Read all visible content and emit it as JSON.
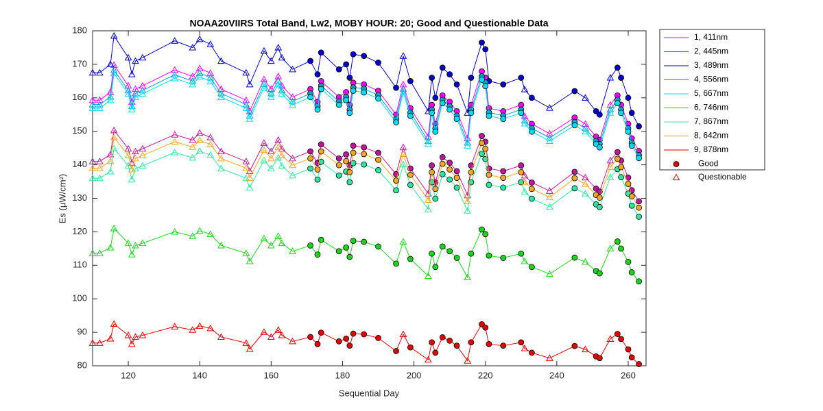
{
  "chart_data": {
    "type": "line",
    "title": "NOAA20VIIRS Total Band,  Lw2, MOBY HOUR: 20;  Good and Questionable Data",
    "x_label": "Sequential Day",
    "y_label": "Es (μW/cm²)",
    "xlim": [
      110,
      265
    ],
    "ylim": [
      80,
      180
    ],
    "xticks": [
      120,
      140,
      160,
      180,
      200,
      220,
      240,
      260
    ],
    "yticks": [
      80,
      90,
      100,
      110,
      120,
      130,
      140,
      150,
      160,
      170,
      180
    ],
    "legend_position": "outside-right",
    "quality_legend": [
      "Good",
      "Questionable"
    ],
    "quality_legend_color": "#e00000",
    "x": [
      110,
      112,
      115,
      116,
      120,
      121,
      122,
      124,
      133,
      138,
      140,
      143,
      146,
      153,
      154,
      158,
      160,
      162,
      163,
      166,
      171,
      173,
      174,
      179,
      181,
      182,
      183,
      186,
      190,
      195,
      197,
      199,
      204,
      205,
      206,
      208,
      210,
      212,
      215,
      216,
      219,
      220,
      221,
      225,
      230,
      231,
      233,
      238,
      245,
      248,
      251,
      252,
      255,
      257,
      258,
      260,
      261,
      263
    ],
    "good": [
      false,
      false,
      false,
      false,
      false,
      false,
      false,
      false,
      false,
      false,
      false,
      false,
      false,
      false,
      false,
      false,
      false,
      false,
      false,
      false,
      true,
      true,
      true,
      true,
      true,
      true,
      true,
      true,
      true,
      true,
      false,
      true,
      false,
      true,
      true,
      true,
      true,
      true,
      false,
      true,
      true,
      true,
      true,
      true,
      true,
      false,
      true,
      false,
      true,
      false,
      true,
      true,
      false,
      true,
      true,
      true,
      true,
      true
    ],
    "series": [
      {
        "name": "1, 411nm",
        "color": "#ff00ff",
        "values": [
          159.3,
          159.3,
          161.7,
          169.8,
          163.6,
          158.8,
          162.6,
          163.6,
          168.3,
          166.4,
          168.8,
          167.4,
          162.6,
          159.3,
          156.0,
          165.5,
          162.6,
          166.4,
          163.6,
          160.2,
          162.6,
          158.8,
          165.0,
          160.2,
          161.7,
          157.9,
          164.5,
          164.0,
          162.1,
          155.0,
          164.0,
          156.9,
          148.4,
          157.9,
          152.2,
          160.7,
          158.8,
          156.0,
          147.9,
          157.9,
          167.9,
          166.0,
          156.9,
          156.0,
          157.9,
          154.5,
          152.2,
          149.3,
          154.1,
          152.2,
          148.4,
          147.4,
          157.9,
          160.7,
          157.9,
          152.2,
          147.9,
          144.1
        ]
      },
      {
        "name": "2, 445nm",
        "color": "#c0169c",
        "values": [
          141.0,
          141.0,
          143.1,
          150.3,
          144.8,
          140.6,
          144.0,
          144.8,
          149.0,
          147.4,
          149.5,
          148.2,
          144.0,
          141.0,
          138.1,
          146.5,
          144.0,
          147.4,
          144.8,
          141.9,
          144.0,
          140.6,
          146.1,
          141.9,
          143.1,
          139.8,
          145.7,
          145.2,
          143.6,
          137.2,
          145.2,
          138.9,
          131.4,
          139.8,
          134.7,
          142.3,
          140.6,
          138.1,
          130.9,
          139.8,
          148.6,
          146.9,
          138.9,
          138.1,
          139.8,
          136.8,
          134.7,
          132.2,
          137.9,
          136.2,
          132.9,
          132.0,
          141.3,
          143.8,
          141.3,
          136.2,
          132.4,
          129.1
        ]
      },
      {
        "name": "3, 489nm",
        "color": "#0000c8",
        "values": [
          167.5,
          167.5,
          170,
          178.5,
          172,
          167,
          171,
          172,
          177,
          175,
          177.5,
          176,
          171,
          167.5,
          164,
          174,
          171,
          175,
          172,
          168.5,
          171,
          167,
          173.5,
          168.5,
          170,
          166,
          173,
          172.5,
          170.5,
          163,
          172.5,
          165,
          156,
          166,
          160,
          169,
          167,
          164,
          155.5,
          166,
          176.5,
          174.5,
          165,
          164,
          166,
          162.5,
          160,
          157,
          162,
          160,
          156,
          155,
          166,
          169,
          166,
          160,
          155.5,
          151.5
        ]
      },
      {
        "name": "4, 556nm",
        "color": "#00a0c8",
        "values": [
          158.0,
          158.0,
          160.3,
          168.3,
          162.2,
          157.5,
          161.3,
          162.2,
          166.9,
          165.0,
          167.4,
          166.0,
          161.3,
          158.0,
          154.7,
          164.1,
          161.3,
          165.0,
          162.2,
          158.9,
          161.3,
          157.5,
          163.6,
          158.9,
          160.3,
          156.5,
          163.1,
          162.7,
          160.8,
          153.7,
          162.7,
          155.6,
          147.1,
          156.5,
          150.9,
          159.4,
          157.5,
          154.7,
          146.6,
          156.5,
          166.4,
          164.6,
          155.6,
          154.7,
          156.5,
          153.2,
          150.9,
          148.1,
          152.8,
          150.9,
          147.1,
          146.2,
          156.5,
          159.4,
          156.5,
          150.9,
          146.6,
          142.9
        ]
      },
      {
        "name": "5, 667nm",
        "color": "#00dcff",
        "values": [
          156.9,
          156.9,
          159.3,
          167.3,
          161.2,
          156.5,
          160.2,
          161.2,
          165.8,
          164.0,
          166.3,
          164.9,
          160.2,
          156.9,
          153.7,
          163.0,
          160.2,
          164.0,
          161.2,
          157.9,
          160.2,
          156.5,
          162.6,
          157.9,
          159.3,
          155.5,
          162.1,
          161.6,
          159.8,
          152.7,
          161.6,
          154.6,
          146.2,
          155.5,
          149.9,
          158.4,
          156.5,
          153.7,
          145.7,
          155.5,
          165.4,
          163.5,
          154.6,
          153.7,
          155.5,
          152.3,
          149.9,
          147.1,
          151.8,
          149.9,
          146.2,
          145.2,
          155.5,
          158.4,
          155.5,
          149.9,
          145.7,
          142.0
        ]
      },
      {
        "name": "6, 746nm",
        "color": "#1ed21e",
        "values": [
          113.6,
          113.6,
          115.3,
          121.0,
          116.6,
          113.2,
          115.9,
          116.6,
          120.0,
          118.7,
          120.3,
          119.3,
          115.9,
          113.6,
          111.2,
          118.0,
          115.9,
          118.7,
          116.6,
          114.2,
          115.9,
          113.2,
          117.6,
          114.2,
          115.3,
          112.5,
          117.3,
          117.0,
          115.6,
          110.5,
          117.0,
          111.9,
          106.8,
          113.5,
          109.5,
          115.6,
          114.2,
          112.2,
          106.4,
          113.5,
          120.7,
          119.3,
          112.9,
          112.2,
          113.5,
          111.2,
          109.5,
          107.4,
          112.3,
          111.0,
          108.3,
          107.6,
          115.0,
          117.1,
          115.0,
          111.0,
          107.9,
          105.2
        ]
      },
      {
        "name": "7, 867nm",
        "color": "#2ee6a0",
        "values": [
          136.0,
          136.0,
          138.0,
          144.9,
          139.7,
          135.6,
          138.9,
          139.7,
          143.7,
          142.1,
          144.1,
          142.9,
          138.9,
          136.0,
          133.2,
          141.3,
          138.9,
          142.1,
          139.7,
          136.8,
          138.9,
          135.6,
          140.9,
          136.8,
          138.0,
          134.8,
          140.5,
          140.1,
          138.4,
          132.4,
          140.1,
          134.0,
          126.7,
          134.8,
          129.9,
          137.2,
          135.6,
          133.2,
          126.3,
          134.8,
          143.3,
          141.7,
          134.0,
          133.2,
          134.8,
          132.0,
          129.9,
          127.5,
          133.0,
          131.4,
          128.2,
          127.4,
          136.3,
          138.7,
          136.3,
          131.4,
          127.8,
          124.5
        ]
      },
      {
        "name": "8, 642nm",
        "color": "#f5a623",
        "values": [
          139.0,
          139.0,
          141.1,
          148.2,
          142.8,
          138.6,
          141.9,
          142.8,
          146.9,
          145.3,
          147.3,
          146.1,
          141.9,
          139.0,
          136.1,
          144.4,
          141.9,
          145.3,
          142.8,
          139.9,
          141.9,
          138.6,
          144.0,
          139.9,
          141.1,
          137.8,
          143.6,
          143.2,
          141.5,
          135.3,
          143.2,
          137.0,
          129.5,
          137.8,
          132.8,
          140.3,
          138.6,
          136.1,
          129.1,
          137.8,
          146.5,
          144.8,
          137.0,
          136.1,
          137.8,
          134.9,
          132.8,
          130.3,
          136.0,
          134.3,
          131.0,
          130.2,
          139.3,
          141.8,
          139.3,
          134.3,
          130.6,
          127.2
        ]
      },
      {
        "name": "9, 878nm",
        "color": "#e00000",
        "values": [
          86.8,
          86.8,
          88.1,
          92.5,
          89.1,
          86.5,
          88.6,
          89.1,
          91.7,
          90.7,
          91.9,
          91.2,
          88.6,
          86.8,
          85.0,
          90.1,
          88.6,
          90.7,
          89.1,
          87.3,
          88.6,
          86.5,
          89.9,
          87.3,
          88.1,
          86.0,
          89.6,
          89.4,
          88.3,
          84.4,
          89.4,
          85.5,
          81.8,
          87.0,
          83.9,
          88.5,
          87.5,
          86.0,
          81.5,
          87.0,
          92.4,
          91.4,
          86.5,
          86.0,
          87.0,
          85.2,
          83.9,
          82.3,
          85.9,
          84.9,
          82.8,
          82.3,
          88.0,
          89.5,
          88.0,
          84.9,
          82.5,
          80.5
        ]
      }
    ]
  }
}
